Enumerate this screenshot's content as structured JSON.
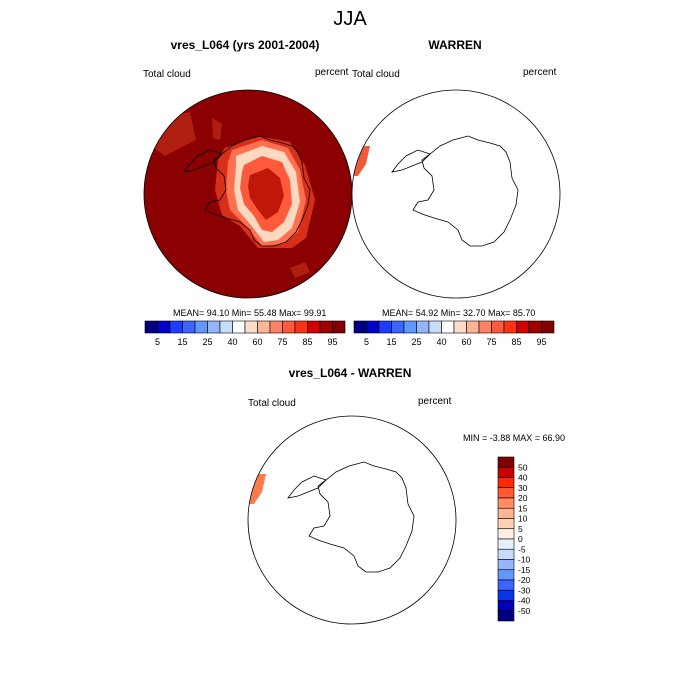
{
  "figure": {
    "title": "JJA"
  },
  "chart_data": [
    {
      "type": "heatmap",
      "projection": "south-polar-stereographic",
      "title": "vres_L064 (yrs 2001-2004)",
      "left_label": "Total cloud",
      "right_label": "percent",
      "stats_text": "MEAN=  94.10  Min=  55.48  Max=  99.91",
      "mean": 94.1,
      "min": 55.48,
      "max": 99.91,
      "colorbar": {
        "orientation": "horizontal",
        "tick_labels": [
          "5",
          "15",
          "25",
          "40",
          "60",
          "75",
          "85",
          "95"
        ],
        "colors": [
          "#00007f",
          "#0000c8",
          "#1e3cff",
          "#3c64ff",
          "#6496ff",
          "#96b4ff",
          "#c8dcff",
          "#ffffff",
          "#ffdcc8",
          "#ffb496",
          "#ff8264",
          "#ff5a3c",
          "#ff3214",
          "#d20000",
          "#a00000",
          "#7f0000"
        ]
      },
      "description_field": "near 100% cloud over the Southern Ocean (dark red), lower values (55-90%) over the Antarctic interior"
    },
    {
      "type": "heatmap",
      "projection": "south-polar-stereographic",
      "title": "WARREN",
      "left_label": "Total cloud",
      "right_label": "percent",
      "stats_text": "MEAN=  54.92  Min=  32.70  Max=  85.70",
      "mean": 54.92,
      "min": 32.7,
      "max": 85.7,
      "colorbar": {
        "orientation": "horizontal",
        "tick_labels": [
          "5",
          "15",
          "25",
          "40",
          "60",
          "75",
          "85",
          "95"
        ],
        "colors": [
          "#00007f",
          "#0000c8",
          "#1e3cff",
          "#3c64ff",
          "#6496ff",
          "#96b4ff",
          "#c8dcff",
          "#ffffff",
          "#ffdcc8",
          "#ffb496",
          "#ff8264",
          "#ff5a3c",
          "#ff3214",
          "#d20000",
          "#a00000",
          "#7f0000"
        ]
      }
    },
    {
      "type": "heatmap",
      "projection": "south-polar-stereographic",
      "title": "vres_L064 - WARREN",
      "left_label": "Total cloud",
      "right_label": "percent",
      "stats_text": "MIN =  -3.88  MAX =  66.90",
      "min": -3.88,
      "max": 66.9,
      "colorbar": {
        "orientation": "vertical",
        "tick_labels": [
          "50",
          "40",
          "30",
          "20",
          "15",
          "10",
          "5",
          "0",
          "-5",
          "-10",
          "-15",
          "-20",
          "-30",
          "-40",
          "-50"
        ],
        "colors": [
          "#7f0000",
          "#c80000",
          "#ff2800",
          "#ff5a32",
          "#ff8c64",
          "#ffb496",
          "#ffd2b4",
          "#fff0e6",
          "#e6f0ff",
          "#c8dcff",
          "#96b4ff",
          "#6496ff",
          "#3c64ff",
          "#0a32e6",
          "#0000b4",
          "#00007f"
        ]
      }
    }
  ]
}
